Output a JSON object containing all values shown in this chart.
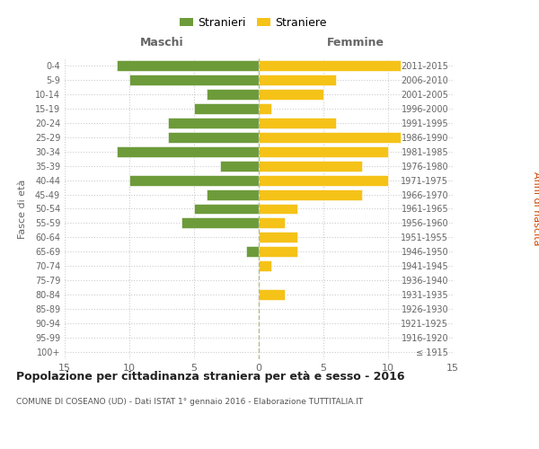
{
  "age_groups": [
    "100+",
    "95-99",
    "90-94",
    "85-89",
    "80-84",
    "75-79",
    "70-74",
    "65-69",
    "60-64",
    "55-59",
    "50-54",
    "45-49",
    "40-44",
    "35-39",
    "30-34",
    "25-29",
    "20-24",
    "15-19",
    "10-14",
    "5-9",
    "0-4"
  ],
  "birth_years": [
    "≤ 1915",
    "1916-1920",
    "1921-1925",
    "1926-1930",
    "1931-1935",
    "1936-1940",
    "1941-1945",
    "1946-1950",
    "1951-1955",
    "1956-1960",
    "1961-1965",
    "1966-1970",
    "1971-1975",
    "1976-1980",
    "1981-1985",
    "1986-1990",
    "1991-1995",
    "1996-2000",
    "2001-2005",
    "2006-2010",
    "2011-2015"
  ],
  "males": [
    0,
    0,
    0,
    0,
    0,
    0,
    0,
    1,
    0,
    6,
    5,
    4,
    10,
    3,
    11,
    7,
    7,
    5,
    4,
    10,
    11
  ],
  "females": [
    0,
    0,
    0,
    0,
    2,
    0,
    1,
    3,
    3,
    2,
    3,
    8,
    10,
    8,
    10,
    11,
    6,
    1,
    5,
    6,
    11
  ],
  "male_color": "#6d9b3a",
  "female_color": "#f5c218",
  "male_label": "Stranieri",
  "female_label": "Straniere",
  "xlabel_left": "Maschi",
  "xlabel_right": "Femmine",
  "ylabel_left": "Fasce di età",
  "ylabel_right": "Anni di nascita",
  "title": "Popolazione per cittadinanza straniera per età e sesso - 2016",
  "subtitle": "COMUNE DI COSEANO (UD) - Dati ISTAT 1° gennaio 2016 - Elaborazione TUTTITALIA.IT",
  "xlim": 15,
  "background_color": "#ffffff",
  "grid_color": "#cccccc",
  "center_line_color": "#aaaaaa"
}
